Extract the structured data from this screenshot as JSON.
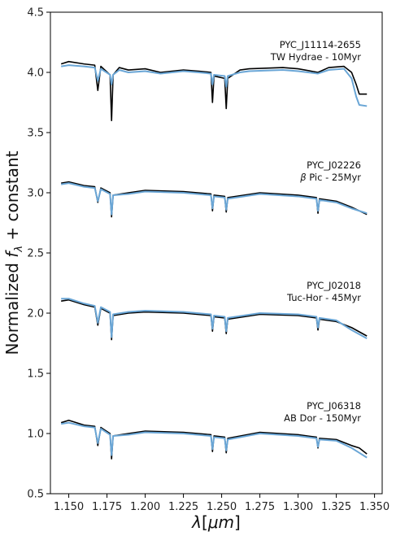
{
  "chart_data": {
    "type": "line",
    "xlabel_parts": [
      "λ",
      "[",
      "μm",
      "]"
    ],
    "ylabel_parts": [
      "Normalized ",
      "f",
      "λ",
      " + constant"
    ],
    "xlim": [
      1.138,
      1.355
    ],
    "ylim": [
      0.5,
      4.5
    ],
    "x_ticks": [
      "1.150",
      "1.175",
      "1.200",
      "1.225",
      "1.250",
      "1.275",
      "1.300",
      "1.325",
      "1.350"
    ],
    "y_ticks": [
      "0.5",
      "1.0",
      "1.5",
      "2.0",
      "2.5",
      "3.0",
      "3.5",
      "4.0",
      "4.5"
    ],
    "x_range": [
      1.145,
      1.345
    ],
    "colors": {
      "observed": "#000000",
      "template": "#6aa6d6"
    },
    "spectra": [
      {
        "object": "PYC_J11114-2655",
        "group": "TW Hydrae - 10Myr",
        "offset": 4.0,
        "observed": {
          "x": [
            1.145,
            1.15,
            1.16,
            1.167,
            1.169,
            1.171,
            1.177,
            1.178,
            1.179,
            1.183,
            1.189,
            1.2,
            1.21,
            1.225,
            1.235,
            1.243,
            1.244,
            1.245,
            1.252,
            1.253,
            1.254,
            1.262,
            1.268,
            1.29,
            1.3,
            1.313,
            1.32,
            1.33,
            1.335,
            1.338,
            1.34,
            1.345
          ],
          "y": [
            4.07,
            4.09,
            4.07,
            4.06,
            3.85,
            4.05,
            3.98,
            3.6,
            3.98,
            4.04,
            4.02,
            4.03,
            4.0,
            4.02,
            4.01,
            4.0,
            3.75,
            3.97,
            3.95,
            3.7,
            3.95,
            4.02,
            4.03,
            4.04,
            4.03,
            4.0,
            4.04,
            4.05,
            4.0,
            3.9,
            3.82,
            3.82
          ]
        },
        "template": {
          "x": [
            1.145,
            1.15,
            1.16,
            1.167,
            1.169,
            1.171,
            1.177,
            1.178,
            1.179,
            1.183,
            1.189,
            1.2,
            1.21,
            1.225,
            1.235,
            1.243,
            1.244,
            1.245,
            1.252,
            1.253,
            1.254,
            1.262,
            1.268,
            1.29,
            1.3,
            1.313,
            1.32,
            1.33,
            1.335,
            1.338,
            1.34,
            1.345
          ],
          "y": [
            4.05,
            4.06,
            4.05,
            4.04,
            3.93,
            4.03,
            3.98,
            3.9,
            3.98,
            4.02,
            4.0,
            4.01,
            3.99,
            4.01,
            4.0,
            3.99,
            3.9,
            3.98,
            3.97,
            3.88,
            3.97,
            4.0,
            4.01,
            4.02,
            4.01,
            3.99,
            4.02,
            4.03,
            3.95,
            3.8,
            3.73,
            3.72
          ]
        }
      },
      {
        "object": "PYC_J02226",
        "group_prefix": "β",
        "group": " Pic - 25Myr",
        "offset": 3.0,
        "observed": {
          "x": [
            1.145,
            1.15,
            1.16,
            1.167,
            1.169,
            1.171,
            1.177,
            1.178,
            1.179,
            1.189,
            1.2,
            1.225,
            1.243,
            1.244,
            1.245,
            1.252,
            1.253,
            1.254,
            1.275,
            1.3,
            1.312,
            1.313,
            1.314,
            1.325,
            1.335,
            1.345
          ],
          "y": [
            3.08,
            3.09,
            3.06,
            3.05,
            2.92,
            3.04,
            3.0,
            2.8,
            2.98,
            3.0,
            3.02,
            3.01,
            2.99,
            2.85,
            2.98,
            2.97,
            2.84,
            2.96,
            3.0,
            2.98,
            2.96,
            2.83,
            2.95,
            2.93,
            2.88,
            2.82
          ]
        },
        "template": {
          "x": [
            1.145,
            1.15,
            1.16,
            1.167,
            1.169,
            1.171,
            1.177,
            1.178,
            1.179,
            1.189,
            1.2,
            1.225,
            1.243,
            1.244,
            1.245,
            1.252,
            1.253,
            1.254,
            1.275,
            1.3,
            1.312,
            1.313,
            1.314,
            1.325,
            1.335,
            1.345
          ],
          "y": [
            3.07,
            3.08,
            3.05,
            3.04,
            2.93,
            3.03,
            2.99,
            2.82,
            2.98,
            2.99,
            3.01,
            3.0,
            2.98,
            2.87,
            2.97,
            2.96,
            2.86,
            2.95,
            2.99,
            2.97,
            2.95,
            2.85,
            2.94,
            2.92,
            2.87,
            2.83
          ]
        }
      },
      {
        "object": "PYC_J02018",
        "group": "Tuc-Hor - 45Myr",
        "offset": 2.0,
        "observed": {
          "x": [
            1.145,
            1.15,
            1.16,
            1.167,
            1.169,
            1.171,
            1.177,
            1.178,
            1.179,
            1.189,
            1.2,
            1.225,
            1.243,
            1.244,
            1.245,
            1.252,
            1.253,
            1.254,
            1.275,
            1.3,
            1.312,
            1.313,
            1.314,
            1.325,
            1.335,
            1.345
          ],
          "y": [
            2.1,
            2.11,
            2.07,
            2.05,
            1.9,
            2.04,
            2.0,
            1.78,
            1.98,
            2.0,
            2.01,
            2.0,
            1.98,
            1.85,
            1.97,
            1.96,
            1.83,
            1.95,
            1.99,
            1.98,
            1.96,
            1.86,
            1.95,
            1.93,
            1.88,
            1.81
          ]
        },
        "template": {
          "x": [
            1.145,
            1.15,
            1.16,
            1.167,
            1.169,
            1.171,
            1.177,
            1.178,
            1.179,
            1.189,
            1.2,
            1.225,
            1.243,
            1.244,
            1.245,
            1.252,
            1.253,
            1.254,
            1.275,
            1.3,
            1.312,
            1.313,
            1.314,
            1.325,
            1.335,
            1.345
          ],
          "y": [
            2.12,
            2.12,
            2.08,
            2.06,
            1.92,
            2.05,
            2.01,
            1.8,
            1.99,
            2.01,
            2.02,
            2.01,
            1.99,
            1.87,
            1.98,
            1.97,
            1.85,
            1.96,
            2.0,
            1.99,
            1.97,
            1.88,
            1.96,
            1.94,
            1.86,
            1.79
          ]
        }
      },
      {
        "object": "PYC_J06318",
        "group": "AB Dor - 150Myr",
        "offset": 1.0,
        "observed": {
          "x": [
            1.145,
            1.15,
            1.16,
            1.167,
            1.169,
            1.171,
            1.177,
            1.178,
            1.179,
            1.189,
            1.2,
            1.225,
            1.243,
            1.244,
            1.245,
            1.252,
            1.253,
            1.254,
            1.275,
            1.3,
            1.312,
            1.313,
            1.314,
            1.325,
            1.335,
            1.34,
            1.345
          ],
          "y": [
            1.09,
            1.11,
            1.07,
            1.06,
            0.9,
            1.05,
            1.0,
            0.79,
            0.98,
            1.0,
            1.02,
            1.01,
            0.99,
            0.85,
            0.98,
            0.97,
            0.84,
            0.96,
            1.01,
            0.99,
            0.97,
            0.88,
            0.96,
            0.95,
            0.9,
            0.88,
            0.83
          ]
        },
        "template": {
          "x": [
            1.145,
            1.15,
            1.16,
            1.167,
            1.169,
            1.171,
            1.177,
            1.178,
            1.179,
            1.189,
            1.2,
            1.225,
            1.243,
            1.244,
            1.245,
            1.252,
            1.253,
            1.254,
            1.275,
            1.3,
            1.312,
            1.313,
            1.314,
            1.325,
            1.335,
            1.34,
            1.345
          ],
          "y": [
            1.08,
            1.09,
            1.06,
            1.05,
            0.92,
            1.04,
            0.99,
            0.82,
            0.98,
            0.99,
            1.01,
            1.0,
            0.98,
            0.87,
            0.97,
            0.96,
            0.86,
            0.95,
            1.0,
            0.98,
            0.96,
            0.89,
            0.95,
            0.94,
            0.88,
            0.84,
            0.8
          ]
        }
      }
    ]
  }
}
